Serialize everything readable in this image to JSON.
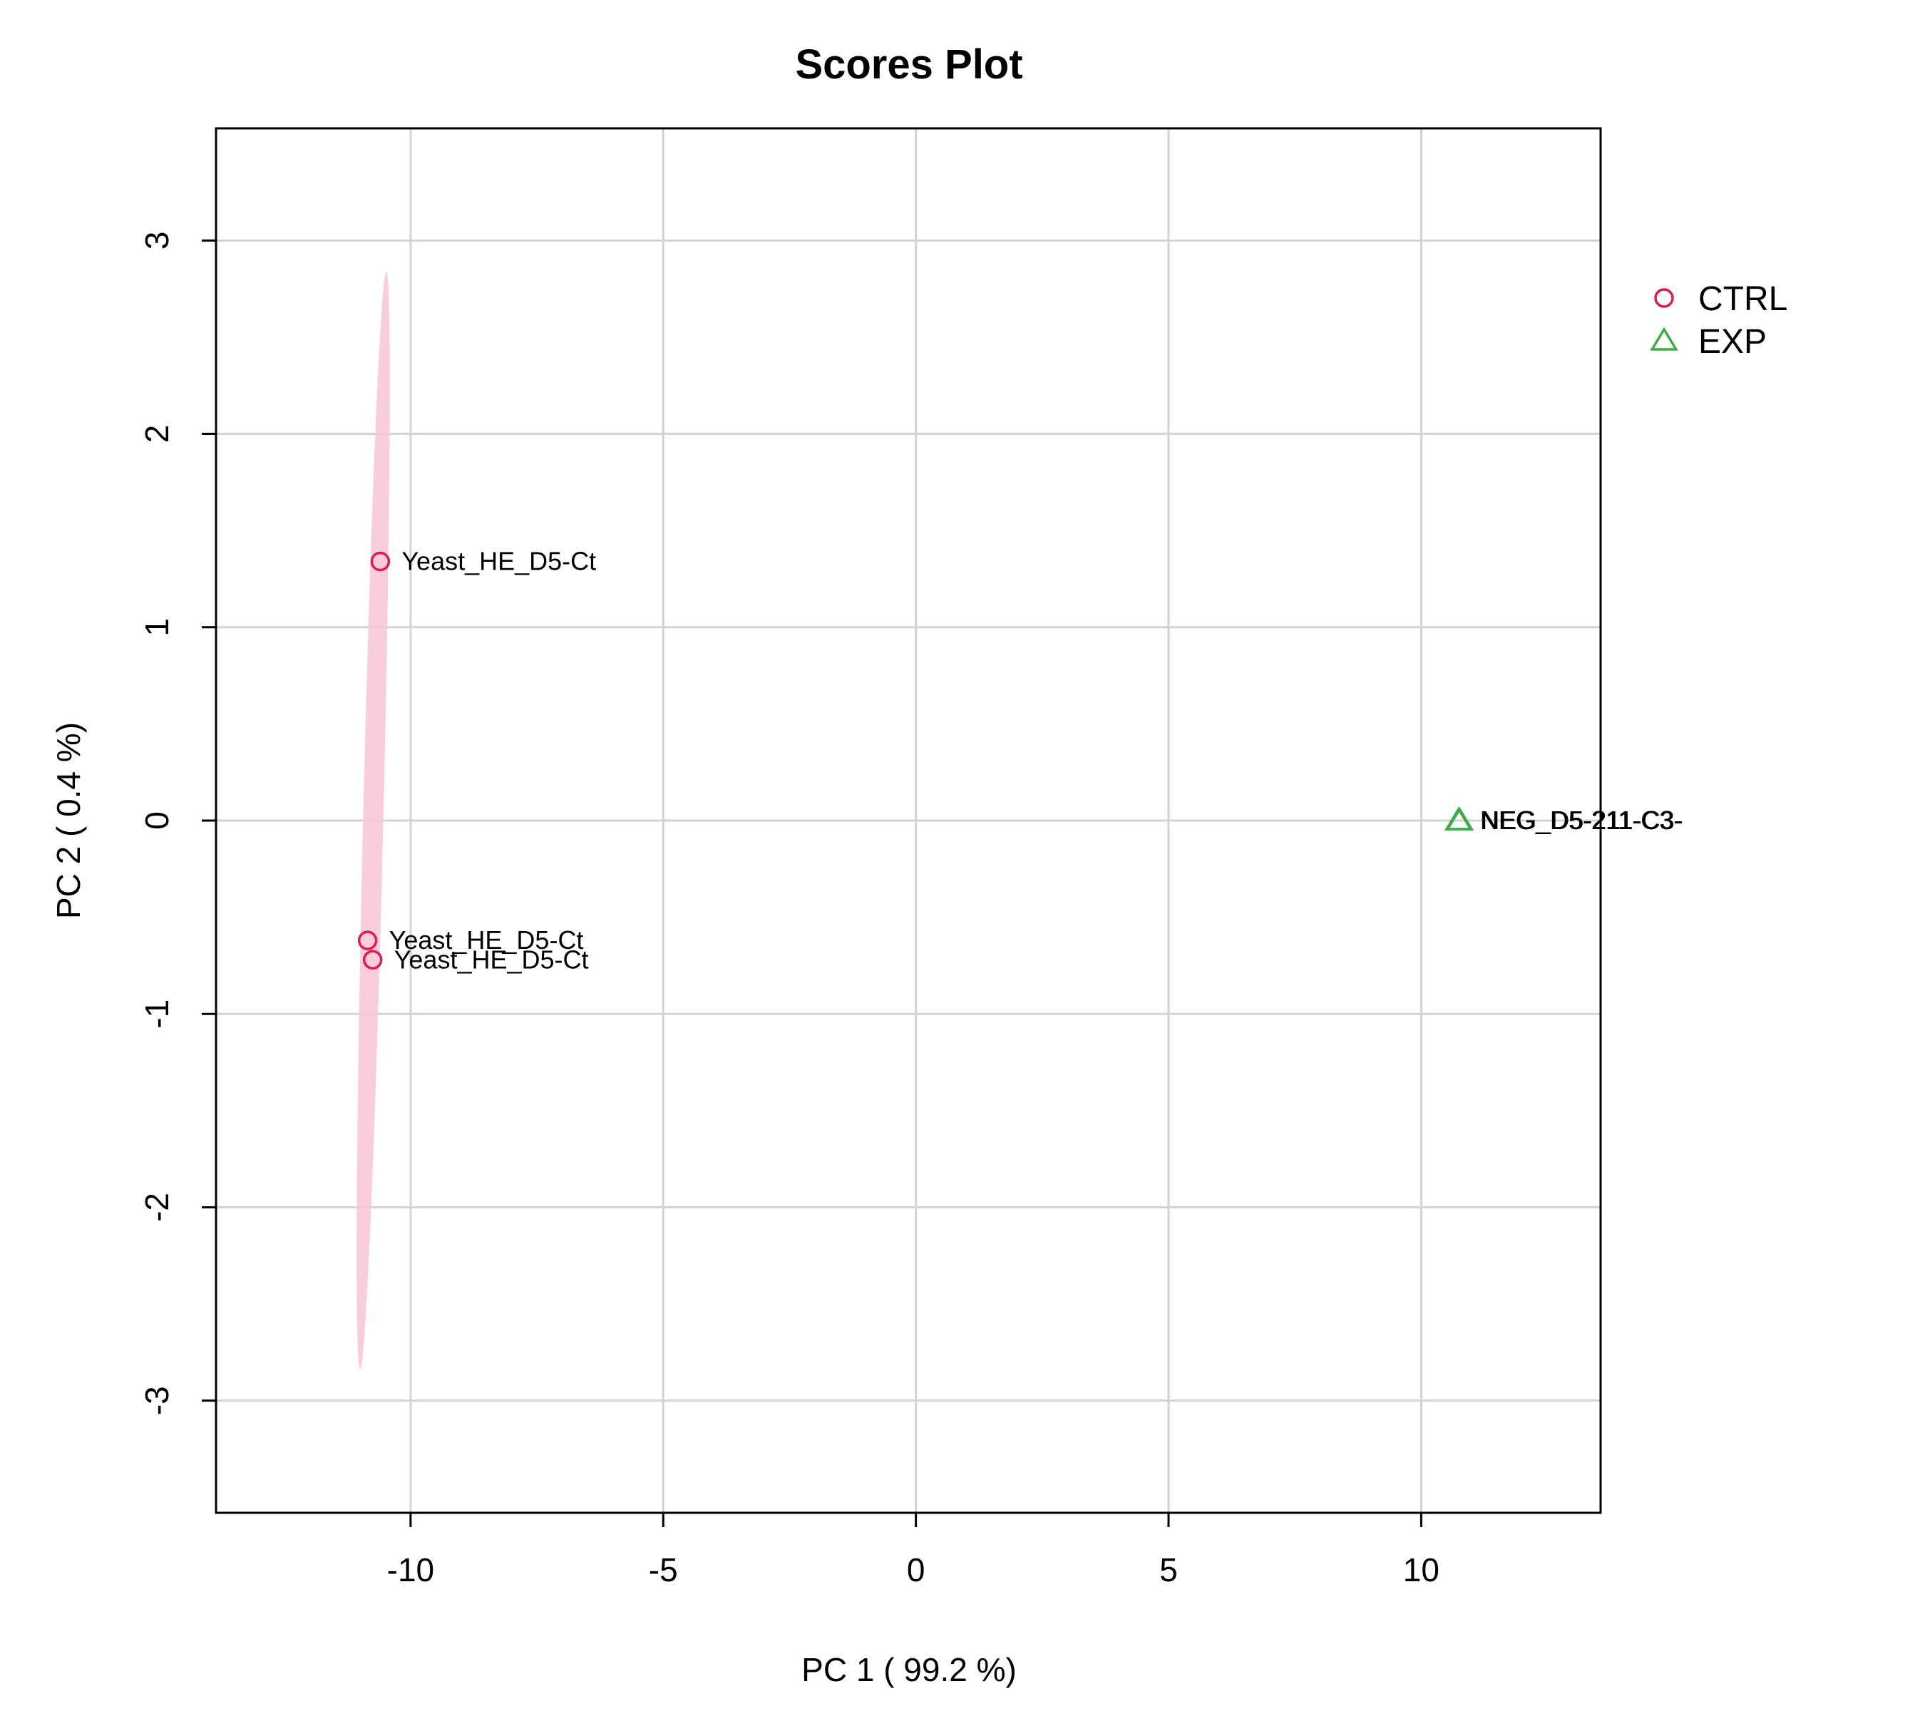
{
  "chart_data": {
    "type": "scatter",
    "title": "Scores Plot",
    "xlabel": "PC 1 ( 99.2 %)",
    "ylabel": "PC 2 ( 0.4 %)",
    "xlim": [
      -13.85,
      13.55
    ],
    "ylim": [
      -3.58,
      3.58
    ],
    "xticks": [
      -10,
      -5,
      0,
      5,
      10
    ],
    "xtick_labels": [
      "-10",
      "-5",
      "0",
      "5",
      "10"
    ],
    "yticks": [
      -3,
      -2,
      -1,
      0,
      1,
      2,
      3
    ],
    "ytick_labels": [
      "-3",
      "-2",
      "-1",
      "0",
      "1",
      "2",
      "3"
    ],
    "grid": true,
    "legend_position": "right",
    "series": [
      {
        "name": "CTRL",
        "marker": "circle",
        "color": "#DF1B4F",
        "ellipse_color": "#F8C6D3",
        "points": [
          {
            "x": -10.6,
            "y": 1.34,
            "label": "Yeast_HE_D5-Ct"
          },
          {
            "x": -10.85,
            "y": -0.62,
            "label": "Yeast_HE_D5-Ct"
          },
          {
            "x": -10.75,
            "y": -0.72,
            "label": "Yeast_HE_D5-Ct"
          }
        ],
        "ellipse": {
          "top": [
            -10.48,
            2.84
          ],
          "bottom": [
            -11.0,
            -2.84
          ],
          "half_width": 0.2
        }
      },
      {
        "name": "EXP",
        "marker": "triangle",
        "color": "#3DAE46",
        "points": [
          {
            "x": 10.75,
            "y": 0.0,
            "label": "NEG_D5-211-C3-"
          },
          {
            "x": 10.76,
            "y": 0.0,
            "label": "NEG_D5-211-C3-"
          },
          {
            "x": 10.74,
            "y": 0.0,
            "label": "NEG_D5-211-C3-"
          }
        ]
      }
    ]
  }
}
